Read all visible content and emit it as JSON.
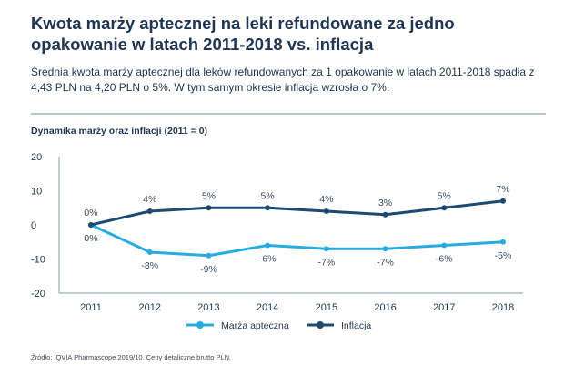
{
  "header": {
    "title": "Kwota marży aptecznej na leki refundowane za jedno opakowanie w latach 2011-2018 vs. inflacja",
    "subtitle": "Średnia kwota marży aptecznej dla leków refundowanych za 1 opakowanie w latach 2011-2018 spadła z 4,43 PLN na 4,20 PLN o 5%. W tym samym okresie inflacja wzrosła o 7%."
  },
  "footer": {
    "source": "Źródło: IQVIA Pharmascope 2019/10. Ceny detaliczne brutto PLN."
  },
  "colors": {
    "marza": "#29abe2",
    "inflacja": "#1c4a72",
    "axis": "#8a96a4",
    "text": "#1f3551"
  },
  "chart_data": {
    "type": "line",
    "title": "Dynamika marży oraz inflacji (2011 = 0)",
    "x": [
      "2011",
      "2012",
      "2013",
      "2014",
      "2015",
      "2016",
      "2017",
      "2018"
    ],
    "xlabel": "",
    "ylabel": "",
    "ylim": [
      -20,
      20
    ],
    "yticks": [
      20,
      10,
      0,
      -10,
      -20
    ],
    "ytick_labels": [
      "20",
      "10",
      "0",
      "-10",
      "-20"
    ],
    "legend_position": "bottom-center",
    "series": [
      {
        "name": "Marża apteczna",
        "color": "#29abe2",
        "values": [
          0,
          -8,
          -9,
          -6,
          -7,
          -7,
          -6,
          -5
        ],
        "labels": [
          "0%",
          "-8%",
          "-9%",
          "-6%",
          "-7%",
          "-7%",
          "-6%",
          "-5%"
        ],
        "label_position": "below"
      },
      {
        "name": "Inflacja",
        "color": "#1c4a72",
        "values": [
          0,
          4,
          5,
          5,
          4,
          3,
          5,
          7
        ],
        "labels": [
          "0%",
          "4%",
          "5%",
          "5%",
          "4%",
          "3%",
          "5%",
          "7%"
        ],
        "label_position": "above"
      }
    ]
  }
}
